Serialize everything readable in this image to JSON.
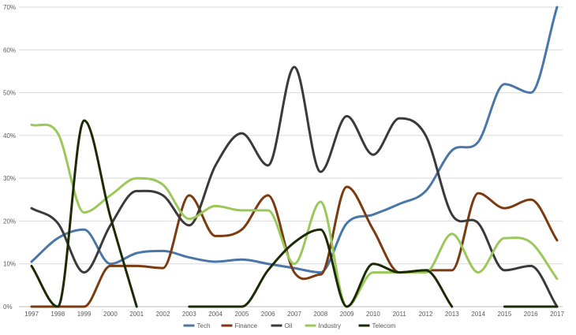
{
  "chart_data": {
    "type": "line",
    "title": "",
    "xlabel": "",
    "ylabel": "",
    "smooth": true,
    "categories": [
      "1997",
      "1998",
      "1999",
      "2000",
      "2001",
      "2002",
      "2003",
      "2004",
      "2005",
      "2006",
      "2007",
      "2008",
      "2009",
      "2010",
      "2011",
      "2012",
      "2013",
      "2014",
      "2015",
      "2016",
      "2017"
    ],
    "ylim": [
      0,
      70
    ],
    "yticks": [
      0,
      10,
      20,
      30,
      40,
      50,
      60,
      70
    ],
    "ytick_labels": [
      "0%",
      "10%",
      "20%",
      "30%",
      "40%",
      "50%",
      "60%",
      "70%"
    ],
    "grid": true,
    "legend_position": "bottom",
    "series": [
      {
        "name": "Tech",
        "color": "#4a76a8",
        "values": [
          10.5,
          16,
          18,
          10,
          12.5,
          13,
          11.5,
          10.5,
          11,
          10,
          9,
          8,
          19.5,
          21.5,
          24,
          27,
          36.5,
          38.5,
          52,
          50,
          70
        ]
      },
      {
        "name": "Finance",
        "color": "#7b3a10",
        "values": [
          0,
          0,
          0,
          9.5,
          9.5,
          9,
          26,
          16.5,
          18,
          26,
          8,
          7.5,
          28,
          18,
          8,
          8.5,
          8.5,
          26.5,
          23,
          25,
          15.5
        ]
      },
      {
        "name": "Oil",
        "color": "#3a3a3a",
        "values": [
          23,
          19.5,
          8,
          19,
          27,
          26,
          19,
          33,
          40.5,
          33,
          56,
          31.5,
          44.5,
          35.5,
          44,
          40,
          21.5,
          19.5,
          8.5,
          9.5,
          0
        ]
      },
      {
        "name": "Industry",
        "color": "#9bc85a",
        "values": [
          42.5,
          40.5,
          22,
          26,
          30,
          28.5,
          20.5,
          23.5,
          22.5,
          22.5,
          10,
          24.5,
          0,
          8,
          8,
          8,
          17,
          8,
          16,
          15,
          6.5
        ]
      },
      {
        "name": "Telecom",
        "color": "#1c2b06",
        "values": [
          9.5,
          0,
          43.5,
          21,
          0,
          null,
          0,
          0,
          0,
          8.5,
          15,
          18,
          0,
          10,
          8,
          8.5,
          0,
          null,
          0,
          0,
          0
        ]
      }
    ]
  }
}
